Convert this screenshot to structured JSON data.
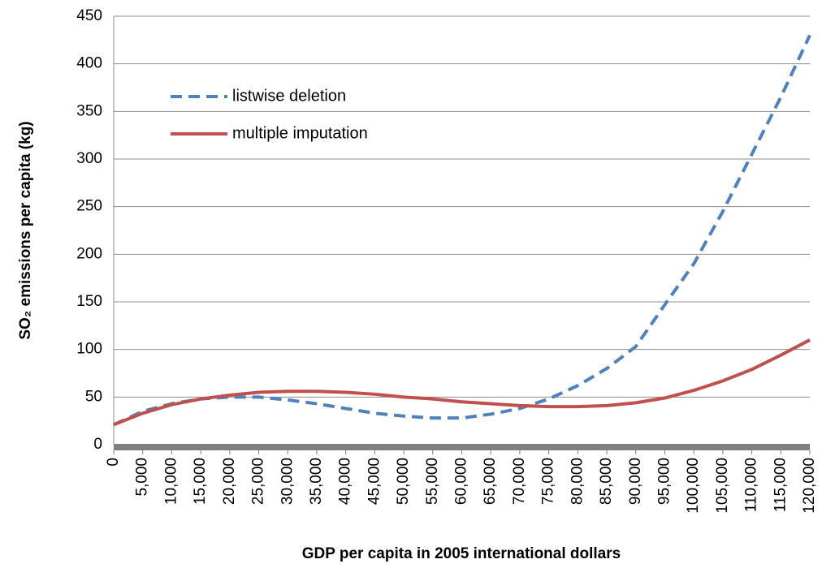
{
  "chart_data": {
    "type": "line",
    "x_label": "GDP per capita in 2005 international dollars",
    "y_label": "SO₂ emissions per capita (kg)",
    "x": [
      0,
      5000,
      10000,
      15000,
      20000,
      25000,
      30000,
      35000,
      40000,
      45000,
      50000,
      55000,
      60000,
      65000,
      70000,
      75000,
      80000,
      85000,
      90000,
      95000,
      100000,
      105000,
      110000,
      115000,
      120000
    ],
    "series": [
      {
        "name": "listwise deletion",
        "color": "#4f81bd",
        "dash": true,
        "values": [
          21,
          35,
          43,
          48,
          50,
          50,
          47,
          43,
          38,
          33,
          30,
          28,
          28,
          32,
          38,
          48,
          62,
          80,
          103,
          147,
          190,
          245,
          305,
          365,
          430
        ]
      },
      {
        "name": "multiple imputation",
        "color": "#c0504d",
        "dash": false,
        "values": [
          21,
          33,
          42,
          48,
          52,
          55,
          56,
          56,
          55,
          53,
          50,
          48,
          45,
          43,
          41,
          40,
          40,
          41,
          44,
          49,
          57,
          67,
          79,
          94,
          110
        ]
      }
    ],
    "xlim": [
      0,
      120000
    ],
    "xticks": [
      0,
      {
        "value": 5000,
        "label": "5,000"
      },
      {
        "value": 10000,
        "label": "10,000"
      },
      {
        "value": 15000,
        "label": "15,000"
      },
      {
        "value": 20000,
        "label": "20,000"
      },
      {
        "value": 25000,
        "label": "25,000"
      },
      {
        "value": 30000,
        "label": "30,000"
      },
      {
        "value": 35000,
        "label": "35,000"
      },
      {
        "value": 40000,
        "label": "40,000"
      },
      {
        "value": 45000,
        "label": "45,000"
      },
      {
        "value": 50000,
        "label": "50,000"
      },
      {
        "value": 55000,
        "label": "55,000"
      },
      {
        "value": 60000,
        "label": "60,000"
      },
      {
        "value": 65000,
        "label": "65,000"
      },
      {
        "value": 70000,
        "label": "70,000"
      },
      {
        "value": 75000,
        "label": "75,000"
      },
      {
        "value": 80000,
        "label": "80,000"
      },
      {
        "value": 85000,
        "label": "85,000"
      },
      {
        "value": 90000,
        "label": "90,000"
      },
      {
        "value": 95000,
        "label": "95,000"
      },
      {
        "value": 100000,
        "label": "100,000"
      },
      {
        "value": 105000,
        "label": "105,000"
      },
      {
        "value": 110000,
        "label": "110,000"
      },
      {
        "value": 115000,
        "label": "115,000"
      },
      {
        "value": 120000,
        "label": "120,000"
      }
    ],
    "ylim": [
      0,
      450
    ],
    "yticks": [
      0,
      50,
      100,
      150,
      200,
      250,
      300,
      350,
      400,
      450
    ],
    "grid": true,
    "legend": "upper left"
  }
}
